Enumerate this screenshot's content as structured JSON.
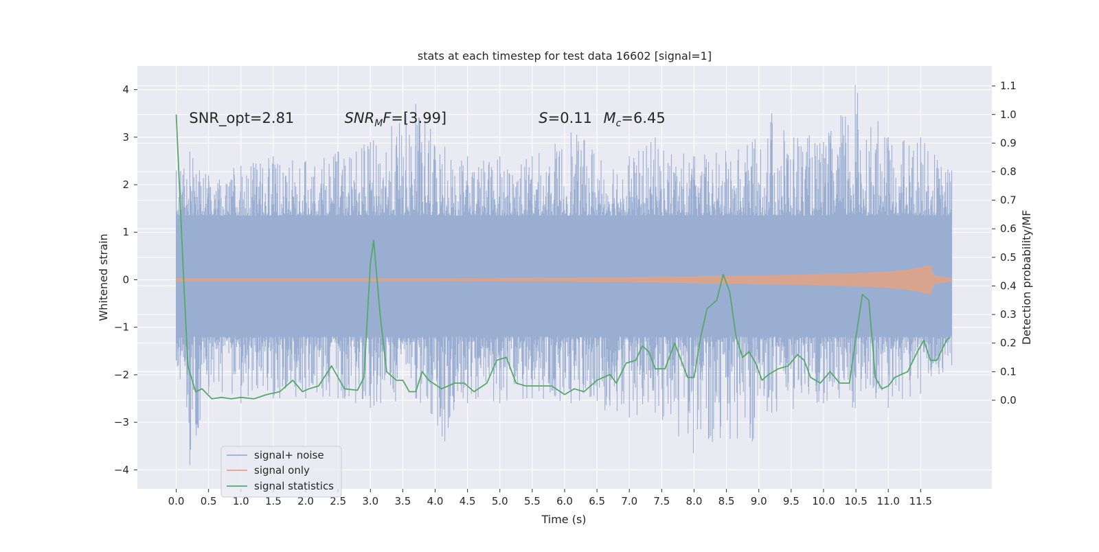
{
  "chart_data": {
    "type": "line",
    "title": "stats at each timestep for test data 16602 [signal=1]",
    "xlabel": "Time (s)",
    "ylabel": "Whitened strain",
    "ylabel_right": "Detection probability/MF",
    "xlim": [
      -0.6,
      12.6
    ],
    "ylim": [
      -4.4,
      4.5
    ],
    "ylim_right": [
      -0.31,
      1.17
    ],
    "x_ticks": [
      0.0,
      0.5,
      1.0,
      1.5,
      2.0,
      2.5,
      3.0,
      3.5,
      4.0,
      4.5,
      5.0,
      5.5,
      6.0,
      6.5,
      7.0,
      7.5,
      8.0,
      8.5,
      9.0,
      9.5,
      10.0,
      10.5,
      11.0,
      11.5
    ],
    "x_tick_labels": [
      "0.0",
      "0.5",
      "1.0",
      "1.5",
      "2.0",
      "2.5",
      "3.0",
      "3.5",
      "4.0",
      "4.5",
      "5.0",
      "5.5",
      "6.0",
      "6.5",
      "7.0",
      "7.5",
      "8.0",
      "8.5",
      "9.0",
      "9.5",
      "10.0",
      "10.5",
      "11.0",
      "11.5"
    ],
    "y_ticks": [
      -4,
      -3,
      -2,
      -1,
      0,
      1,
      2,
      3,
      4
    ],
    "y_tick_labels": [
      "−4",
      "−3",
      "−2",
      "−1",
      "0",
      "1",
      "2",
      "3",
      "4"
    ],
    "y_ticks_right": [
      0.0,
      0.1,
      0.2,
      0.3,
      0.4,
      0.5,
      0.6,
      0.7,
      0.8,
      0.9,
      1.0,
      1.1
    ],
    "y_tick_labels_right": [
      "0.0",
      "0.1",
      "0.2",
      "0.3",
      "0.4",
      "0.5",
      "0.6",
      "0.7",
      "0.8",
      "0.9",
      "1.0",
      "1.1"
    ],
    "grid": true,
    "legend_position": "lower-left",
    "annotations": [
      {
        "label": "SNR_opt=2.81",
        "x": 0.2,
        "y": 3.3
      },
      {
        "label": "SNR_MF=[3.99]",
        "x": 2.6,
        "y": 3.3
      },
      {
        "label": "S=0.11",
        "x": 5.6,
        "y": 3.3
      },
      {
        "label": "M_c=6.45",
        "x": 6.6,
        "y": 3.3
      }
    ],
    "series": [
      {
        "name": "signal+ noise",
        "axis": "left",
        "color": "#9aaed2",
        "x_range": [
          0.0,
          11.98
        ],
        "envelope": [
          {
            "x": 0.0,
            "low": -1.7,
            "high": 2.3
          },
          {
            "x": 0.21,
            "low": -3.9,
            "high": 2.7
          },
          {
            "x": 0.5,
            "low": -2.4,
            "high": 2.2
          },
          {
            "x": 1.0,
            "low": -2.6,
            "high": 2.4
          },
          {
            "x": 1.5,
            "low": -2.5,
            "high": 2.6
          },
          {
            "x": 2.0,
            "low": -2.5,
            "high": 2.5
          },
          {
            "x": 2.5,
            "low": -2.5,
            "high": 2.7
          },
          {
            "x": 3.0,
            "low": -2.7,
            "high": 2.9
          },
          {
            "x": 3.7,
            "low": -2.5,
            "high": 3.7
          },
          {
            "x": 4.15,
            "low": -3.4,
            "high": 2.8
          },
          {
            "x": 4.5,
            "low": -2.6,
            "high": 2.6
          },
          {
            "x": 5.0,
            "low": -2.6,
            "high": 2.6
          },
          {
            "x": 5.5,
            "low": -2.5,
            "high": 2.6
          },
          {
            "x": 6.1,
            "low": -2.6,
            "high": 3.1
          },
          {
            "x": 7.0,
            "low": -2.9,
            "high": 2.6
          },
          {
            "x": 7.4,
            "low": -2.8,
            "high": 3.0
          },
          {
            "x": 7.99,
            "low": -3.65,
            "high": 2.6
          },
          {
            "x": 8.9,
            "low": -3.4,
            "high": 2.9
          },
          {
            "x": 9.2,
            "low": -2.8,
            "high": 3.5
          },
          {
            "x": 10.0,
            "low": -2.6,
            "high": 2.9
          },
          {
            "x": 10.49,
            "low": -2.7,
            "high": 4.1
          },
          {
            "x": 11.0,
            "low": -2.7,
            "high": 3.0
          },
          {
            "x": 11.5,
            "low": -2.4,
            "high": 3.0
          },
          {
            "x": 11.98,
            "low": -1.8,
            "high": 2.3
          }
        ]
      },
      {
        "name": "signal only",
        "axis": "left",
        "color": "#e0a386",
        "x": [
          0.0,
          2.0,
          4.0,
          6.0,
          7.0,
          8.0,
          9.0,
          10.0,
          10.5,
          11.0,
          11.3,
          11.5,
          11.65,
          11.7,
          11.98
        ],
        "amplitude": [
          0.02,
          0.02,
          0.02,
          0.03,
          0.04,
          0.06,
          0.08,
          0.11,
          0.13,
          0.16,
          0.2,
          0.25,
          0.3,
          0.08,
          0.02
        ]
      },
      {
        "name": "signal statistics",
        "axis": "right",
        "color": "#55a868",
        "x": [
          0.0,
          0.12,
          0.18,
          0.3,
          0.4,
          0.55,
          0.7,
          0.85,
          1.0,
          1.2,
          1.4,
          1.6,
          1.8,
          1.95,
          2.05,
          2.2,
          2.4,
          2.5,
          2.6,
          2.8,
          2.9,
          3.0,
          3.05,
          3.15,
          3.25,
          3.4,
          3.5,
          3.6,
          3.7,
          3.8,
          3.9,
          4.1,
          4.3,
          4.45,
          4.6,
          4.8,
          4.95,
          5.1,
          5.25,
          5.4,
          5.5,
          5.6,
          5.8,
          6.0,
          6.15,
          6.3,
          6.5,
          6.7,
          6.8,
          6.95,
          7.1,
          7.2,
          7.3,
          7.4,
          7.55,
          7.7,
          7.8,
          7.9,
          8.0,
          8.1,
          8.2,
          8.35,
          8.45,
          8.5,
          8.55,
          8.65,
          8.75,
          8.85,
          8.95,
          9.05,
          9.15,
          9.3,
          9.45,
          9.6,
          9.7,
          9.8,
          9.95,
          10.1,
          10.25,
          10.4,
          10.5,
          10.6,
          10.7,
          10.8,
          10.9,
          11.0,
          11.1,
          11.3,
          11.45,
          11.55,
          11.65,
          11.75,
          11.9,
          11.95
        ],
        "values": [
          1.0,
          0.4,
          0.12,
          0.03,
          0.04,
          0.005,
          0.01,
          0.005,
          0.01,
          0.005,
          0.02,
          0.03,
          0.07,
          0.03,
          0.04,
          0.05,
          0.12,
          0.08,
          0.04,
          0.035,
          0.08,
          0.48,
          0.56,
          0.3,
          0.1,
          0.07,
          0.07,
          0.03,
          0.03,
          0.1,
          0.07,
          0.04,
          0.06,
          0.06,
          0.03,
          0.06,
          0.14,
          0.15,
          0.06,
          0.05,
          0.05,
          0.05,
          0.05,
          0.02,
          0.04,
          0.03,
          0.07,
          0.09,
          0.06,
          0.13,
          0.14,
          0.19,
          0.17,
          0.11,
          0.11,
          0.2,
          0.14,
          0.08,
          0.08,
          0.22,
          0.32,
          0.35,
          0.44,
          0.41,
          0.38,
          0.22,
          0.15,
          0.17,
          0.13,
          0.07,
          0.09,
          0.11,
          0.12,
          0.16,
          0.14,
          0.08,
          0.06,
          0.1,
          0.06,
          0.06,
          0.22,
          0.37,
          0.35,
          0.08,
          0.04,
          0.05,
          0.08,
          0.1,
          0.17,
          0.21,
          0.14,
          0.14,
          0.21,
          0.22
        ]
      }
    ]
  }
}
